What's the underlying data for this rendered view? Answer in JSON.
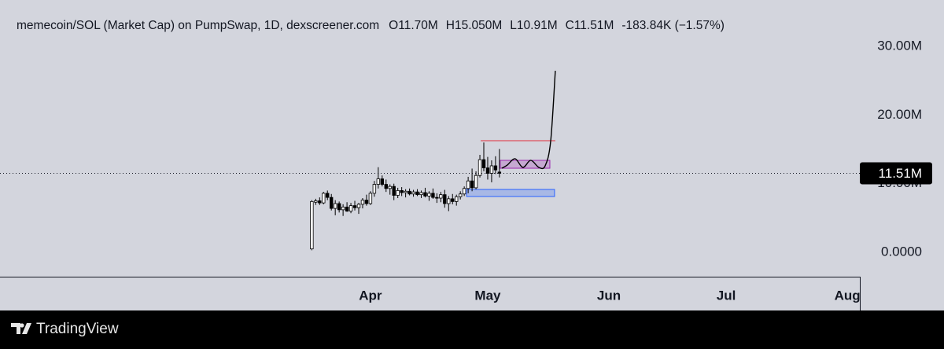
{
  "chart_data": {
    "type": "candlestick",
    "title": "memecoin/SOL (Market Cap) on PumpSwap, 1D, dexscreener.com",
    "legend_values": [
      "O11.70M",
      "H15.050M",
      "L10.91M",
      "C11.51M",
      "-183.84K (−1.57%)"
    ],
    "x": [
      76,
      77,
      78,
      79,
      80,
      81,
      82,
      83,
      84,
      85,
      86,
      87,
      88,
      89,
      90,
      91,
      92,
      93,
      94,
      95,
      96,
      97,
      98,
      99,
      100,
      101,
      102,
      103,
      104,
      105,
      106,
      107,
      108,
      109,
      110,
      111,
      112,
      113,
      114,
      115,
      116,
      117,
      118,
      119,
      120,
      121,
      122,
      123,
      124
    ],
    "open": [
      0.5,
      7.3,
      7.5,
      7.2,
      8.6,
      8.0,
      6.4,
      7.1,
      6.2,
      6.6,
      6.0,
      6.8,
      6.5,
      7.0,
      7.6,
      7.1,
      8.6,
      9.9,
      10.7,
      9.9,
      9.3,
      9.6,
      8.3,
      9.0,
      8.7,
      8.9,
      8.5,
      8.8,
      8.4,
      8.7,
      8.2,
      8.6,
      8.0,
      7.9,
      8.4,
      7.1,
      7.8,
      7.4,
      8.1,
      8.5,
      9.3,
      10.4,
      9.4,
      11.2,
      13.5,
      12.3,
      11.5,
      12.6,
      11.7
    ],
    "high": [
      7.6,
      7.8,
      8.0,
      8.8,
      9.0,
      8.5,
      7.6,
      7.4,
      7.0,
      7.3,
      7.2,
      7.5,
      7.2,
      7.9,
      8.4,
      8.9,
      10.4,
      12.4,
      11.2,
      10.6,
      9.9,
      10.0,
      9.4,
      9.5,
      9.2,
      9.3,
      9.1,
      9.2,
      9.0,
      9.4,
      8.9,
      9.3,
      8.6,
      8.8,
      9.1,
      8.2,
      8.5,
      8.4,
      8.9,
      9.6,
      11.0,
      12.2,
      11.8,
      14.2,
      16.0,
      13.9,
      13.4,
      14.0,
      15.05
    ],
    "low": [
      0.3,
      6.9,
      6.9,
      7.0,
      7.6,
      6.1,
      5.4,
      5.8,
      5.3,
      5.9,
      5.7,
      6.1,
      5.6,
      6.4,
      6.8,
      6.9,
      8.1,
      9.3,
      9.6,
      8.8,
      8.4,
      7.6,
      7.9,
      8.2,
      8.0,
      8.3,
      8.1,
      8.2,
      7.9,
      8.0,
      7.5,
      7.8,
      7.2,
      7.3,
      6.5,
      6.0,
      7.0,
      6.8,
      7.7,
      8.2,
      8.6,
      8.9,
      9.2,
      10.9,
      11.8,
      10.6,
      10.2,
      11.4,
      10.91
    ],
    "close": [
      7.4,
      7.5,
      7.2,
      8.6,
      8.0,
      6.4,
      7.1,
      6.2,
      6.6,
      6.0,
      6.8,
      6.5,
      7.0,
      7.6,
      7.1,
      8.6,
      9.9,
      10.7,
      9.9,
      9.3,
      9.6,
      8.3,
      9.0,
      8.7,
      8.9,
      8.5,
      8.8,
      8.4,
      8.7,
      8.2,
      8.6,
      8.0,
      7.9,
      8.4,
      7.1,
      7.8,
      7.4,
      8.1,
      8.5,
      9.3,
      10.4,
      9.4,
      11.2,
      13.5,
      12.3,
      11.5,
      12.6,
      12.0,
      11.51
    ],
    "up_color": "#ffffff",
    "down_color": "#000000",
    "wick_color": "#000000",
    "xlim": [
      -3.77,
      216.2
    ],
    "xticks": [
      {
        "value": 91,
        "label": "Apr"
      },
      {
        "value": 121,
        "label": "May"
      },
      {
        "value": 152,
        "label": "Jun"
      },
      {
        "value": 182,
        "label": "Jul"
      },
      {
        "value": 213,
        "label": "Aug"
      }
    ],
    "ylim": [
      -3.55,
      36.76
    ],
    "yticks": [
      {
        "value": 0,
        "label": "0.0000"
      },
      {
        "value": 10,
        "label": "10.00M"
      },
      {
        "value": 20,
        "label": "20.00M"
      },
      {
        "value": 30,
        "label": "30.00M"
      }
    ],
    "last_price": {
      "value": 11.51,
      "label": "11.51M"
    },
    "resistance_line": {
      "x": [
        119.2,
        138.3
      ],
      "y": 16.26,
      "color": "#e0303a"
    },
    "range_box": {
      "x": [
        124.2,
        136.9
      ],
      "y": [
        12.25,
        13.4
      ],
      "color": "#9c27b0"
    },
    "support_box": {
      "x": [
        115.6,
        138.1
      ],
      "y": [
        8.13,
        9.16
      ],
      "color": "#2962ff"
    },
    "projection": {
      "x": [
        124.6,
        126.0,
        128.0,
        130.0,
        132.0,
        134.1,
        135.7,
        137.1,
        138.3
      ],
      "y": [
        12.25,
        12.71,
        13.63,
        12.37,
        13.4,
        12.37,
        12.6,
        16.15,
        26.45
      ],
      "color": "#000000"
    },
    "brand": "TradingView"
  }
}
